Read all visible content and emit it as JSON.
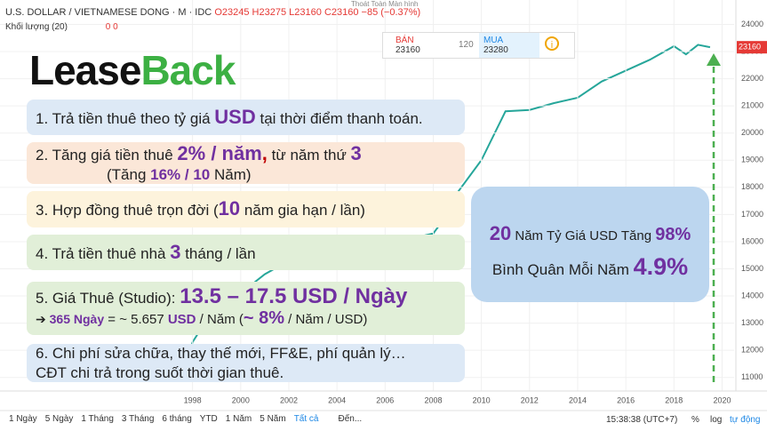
{
  "header": {
    "symbol": "U.S. DOLLAR / VIETNAMESE DONG · M · IDC",
    "open": "O23245",
    "high": "H23275",
    "low": "L23160",
    "close": "C23160",
    "change": "−85 (−0.37%)",
    "volume": "Khối lượng (20)",
    "volume_values": "0 0",
    "fullscreen": "Thoát Toàn Màn hình"
  },
  "trade": {
    "sell_label": "BÁN",
    "sell": "23160",
    "spread": "120",
    "buy_label": "MUA",
    "buy": "23280"
  },
  "chart": {
    "type": "line",
    "color": "#26a69a",
    "x": [
      1997.6,
      1998,
      1998.5,
      1999,
      2000,
      2001,
      2002,
      2003,
      2004,
      2005,
      2006,
      2007,
      2008,
      2008.5,
      2009,
      2010,
      2011,
      2012,
      2013,
      2014,
      2015,
      2016,
      2017,
      2018,
      2018.5,
      2019,
      2019.5
    ],
    "values": [
      11100,
      12300,
      13000,
      13900,
      14100,
      14800,
      15300,
      15600,
      15800,
      15900,
      16000,
      16100,
      16300,
      16900,
      17800,
      19000,
      20800,
      20850,
      21100,
      21300,
      21900,
      22300,
      22700,
      23200,
      22900,
      23250,
      23160
    ],
    "xlim": [
      1990,
      2020.5
    ],
    "xticks": [
      1998,
      2000,
      2002,
      2004,
      2006,
      2008,
      2010,
      2012,
      2014,
      2016,
      2018,
      2020
    ],
    "ylim": [
      10500,
      24900
    ],
    "yticks": [
      11000,
      12000,
      13000,
      14000,
      15000,
      16000,
      17000,
      18000,
      19000,
      20000,
      21000,
      22000,
      23000,
      24000
    ]
  },
  "overlay": {
    "logo": [
      "Lease",
      "Back"
    ],
    "items": [
      [
        "1. Trả tiền thuê theo tỷ giá ",
        "USD",
        " tại thời điểm thanh toán."
      ],
      [
        "2. Tăng giá tiền thuê ",
        "2% / năm",
        ",",
        " từ năm thứ ",
        "3",
        "(Tăng ",
        "16% / 10",
        " Năm)"
      ],
      [
        "3. Hợp đồng thuê trọn đời (",
        "10",
        " năm gia hạn / lần)"
      ],
      [
        "4. Trả tiền thuê nhà ",
        "3",
        " tháng / lần"
      ],
      [
        "5. Giá Thuê (Studio): ",
        "13.5 – 17.5 USD / Ngày",
        "➔ ",
        "365 Ngày",
        " = ~ 5.657 ",
        "USD",
        " / Năm (",
        "~ 8%",
        " / Năm / USD)"
      ],
      [
        "6. Chi phí sửa chữa, thay thế mới, FF&E, phí quản lý…",
        "CĐT chi trả trong suốt thời gian thuê."
      ]
    ],
    "summary": [
      "20",
      " Năm Tỷ Giá USD Tăng ",
      "98%",
      "Bình Quân Mỗi Năm ",
      "4.9%"
    ]
  },
  "footer": {
    "ranges": [
      "1 Ngày",
      "5 Ngày",
      "1 Tháng",
      "3 Tháng",
      "6 tháng",
      "YTD",
      "1 Năm",
      "5 Năm",
      "Tất cả",
      "Đến..."
    ],
    "time": "15:38:38 (UTC+7)",
    "percent": "%",
    "log": "log",
    "auto": "tự động"
  }
}
